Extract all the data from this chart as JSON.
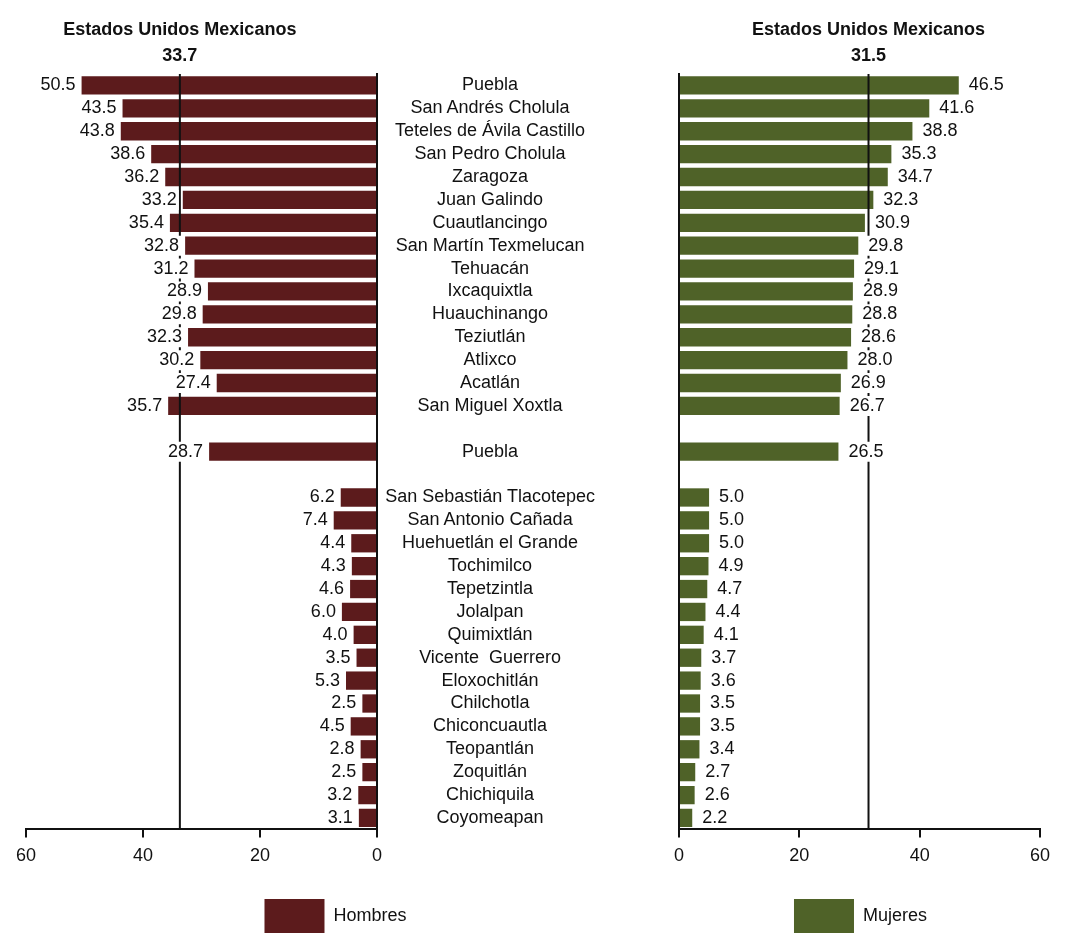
{
  "chart_data": [
    {
      "type": "bar",
      "orientation": "horizontal",
      "categories": [
        "Puebla",
        "San Andrés Cholula",
        "Teteles de Ávila Castillo",
        "San Pedro Cholula",
        "Zaragoza",
        "Juan Galindo",
        "Cuautlancingo",
        "San Martín Texmelucan",
        "Tehuacán",
        "Ixcaquixtla",
        "Huauchinango",
        "Teziutlán",
        "Atlixco",
        "Acatlán",
        "San Miguel Xoxtla",
        null,
        "Puebla",
        null,
        "San Sebastián Tlacotepec",
        "San Antonio Cañada",
        "Huehuetlán el Grande",
        "Tochimilco",
        "Tepetzintla",
        "Jolalpan",
        "Quimixtlán",
        "Vicente  Guerrero",
        "Eloxochitlán",
        "Chilchotla",
        "Chiconcuautla",
        "Teopantlán",
        "Zoquitlán",
        "Chichiquila",
        "Coyomeapan"
      ],
      "series": [
        {
          "name": "Hombres",
          "color": "#5c1b1c",
          "values": [
            50.5,
            43.5,
            43.8,
            38.6,
            36.2,
            33.2,
            35.4,
            32.8,
            31.2,
            28.9,
            29.8,
            32.3,
            30.2,
            27.4,
            35.7,
            null,
            28.7,
            null,
            6.2,
            7.4,
            4.4,
            4.3,
            4.6,
            6.0,
            4.0,
            3.5,
            5.3,
            2.5,
            4.5,
            2.8,
            2.5,
            3.2,
            3.1
          ],
          "value_labels": [
            "50.5",
            "43.5",
            "43.8",
            "38.6",
            "36.2",
            "33.2",
            "35.4",
            "32.8",
            "31.2",
            "28.9",
            "29.8",
            "32.3",
            "30.2",
            "27.4",
            "35.7",
            null,
            "28.7",
            null,
            "6.2",
            "7.4",
            "4.4",
            "4.3",
            "4.6",
            "6.0",
            "4.0",
            "3.5",
            "5.3",
            "2.5",
            "4.5",
            "2.8",
            "2.5",
            "3.2",
            "3.1"
          ]
        }
      ],
      "xlim": [
        60,
        0
      ],
      "xticks": [
        60,
        40,
        20,
        0
      ],
      "legend": "bottom",
      "title": "Estados Unidos Mexicanos",
      "ref_lines": [
        {
          "axis": "x",
          "value": 33.7,
          "label": "33.7"
        }
      ]
    },
    {
      "type": "bar",
      "orientation": "horizontal",
      "categories": [
        null,
        null,
        null,
        null,
        null,
        null,
        null,
        null,
        null,
        null,
        null,
        null,
        null,
        null,
        null,
        null,
        null,
        null,
        null,
        null,
        null,
        null,
        null,
        null,
        null,
        null,
        null,
        null,
        null,
        null,
        null,
        null,
        null
      ],
      "series": [
        {
          "name": "Mujeres",
          "color": "#4f6228",
          "values": [
            46.5,
            41.6,
            38.8,
            35.3,
            34.7,
            32.3,
            30.9,
            29.8,
            29.1,
            28.9,
            28.8,
            28.6,
            28.0,
            26.9,
            26.7,
            null,
            26.5,
            null,
            5.0,
            5.0,
            5.0,
            4.9,
            4.7,
            4.4,
            4.1,
            3.7,
            3.6,
            3.5,
            3.5,
            3.4,
            2.7,
            2.6,
            2.2
          ],
          "value_labels": [
            "46.5",
            "41.6",
            "38.8",
            "35.3",
            "34.7",
            "32.3",
            "30.9",
            "29.8",
            "29.1",
            "28.9",
            "28.8",
            "28.6",
            "28.0",
            "26.9",
            "26.7",
            null,
            "26.5",
            null,
            "5.0",
            "5.0",
            "5.0",
            "4.9",
            "4.7",
            "4.4",
            "4.1",
            "3.7",
            "3.6",
            "3.5",
            "3.5",
            "3.4",
            "2.7",
            "2.6",
            "2.2"
          ]
        }
      ],
      "xlim": [
        0,
        60
      ],
      "xticks": [
        0,
        20,
        40,
        60
      ],
      "legend": "bottom",
      "tick_labels": "x",
      "title": "Estados Unidos Mexicanos",
      "ref_lines": [
        {
          "axis": "x",
          "value": 31.5,
          "label": "31.5"
        }
      ]
    }
  ]
}
